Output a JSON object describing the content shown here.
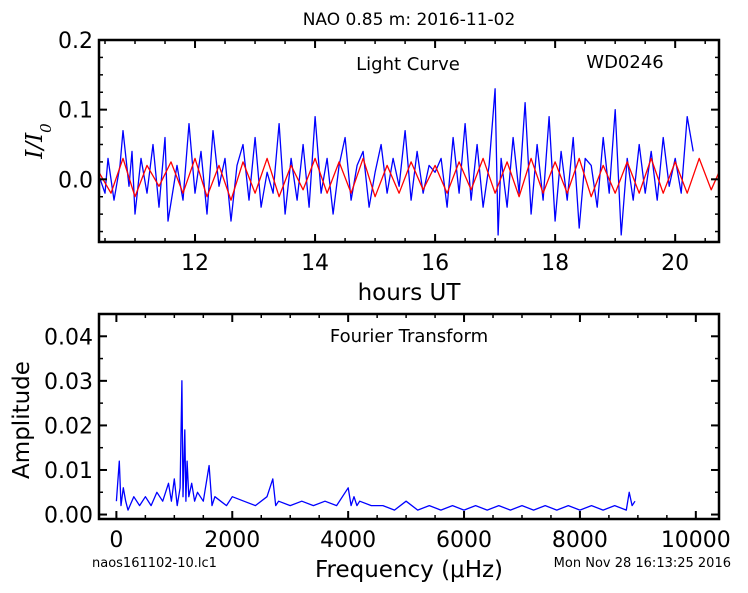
{
  "figure": {
    "title": "NAO 0.85 m:  2016-11-02",
    "footer_left": "naos161102-10.lc1",
    "footer_right": "Mon Nov 28 16:13:25 2016"
  },
  "chart_data": [
    {
      "type": "line",
      "annotation_left": "Light Curve",
      "annotation_right": "WD0246",
      "xlabel": "hours UT",
      "ylabel": "I/I0",
      "xlim": [
        10.4,
        20.73
      ],
      "ylim": [
        -0.09,
        0.2
      ],
      "xticks": [
        12,
        14,
        16,
        18,
        20
      ],
      "xtick_labels": [
        "12",
        "14",
        "16",
        "18",
        "20"
      ],
      "yticks": [
        0.0,
        0.1,
        0.2
      ],
      "ytick_labels": [
        "0.0",
        "0.1",
        "0.2"
      ],
      "grid": false,
      "series": [
        {
          "color": "#0000ff",
          "x": [
            10.4,
            10.5,
            10.55,
            10.65,
            10.75,
            10.8,
            10.9,
            10.95,
            11.0,
            11.1,
            11.2,
            11.3,
            11.4,
            11.5,
            11.55,
            11.7,
            11.8,
            11.9,
            12.0,
            12.1,
            12.2,
            12.3,
            12.4,
            12.5,
            12.6,
            12.7,
            12.8,
            12.9,
            13.0,
            13.1,
            13.2,
            13.3,
            13.4,
            13.5,
            13.6,
            13.7,
            13.8,
            13.9,
            14.0,
            14.1,
            14.2,
            14.3,
            14.4,
            14.5,
            14.6,
            14.7,
            14.8,
            14.9,
            15.0,
            15.1,
            15.2,
            15.3,
            15.4,
            15.5,
            15.6,
            15.7,
            15.8,
            15.9,
            16.0,
            16.1,
            16.2,
            16.3,
            16.4,
            16.5,
            16.6,
            16.7,
            16.8,
            16.9,
            17.0,
            17.05,
            17.1,
            17.2,
            17.3,
            17.4,
            17.5,
            17.6,
            17.7,
            17.8,
            17.9,
            18.0,
            18.1,
            18.2,
            18.3,
            18.4,
            18.5,
            18.6,
            18.7,
            18.8,
            18.9,
            19.0,
            19.1,
            19.2,
            19.3,
            19.4,
            19.5,
            19.6,
            19.7,
            19.8,
            19.9,
            20.0,
            20.1,
            20.2,
            20.3
          ],
          "y": [
            0.005,
            -0.02,
            0.03,
            -0.03,
            0.02,
            0.07,
            -0.01,
            0.04,
            -0.05,
            0.03,
            -0.02,
            0.05,
            -0.04,
            0.06,
            -0.06,
            0.02,
            -0.03,
            0.08,
            -0.02,
            0.04,
            -0.05,
            0.07,
            -0.01,
            0.03,
            -0.06,
            0.02,
            0.05,
            -0.03,
            0.06,
            -0.04,
            0.01,
            -0.02,
            0.08,
            -0.05,
            0.03,
            -0.03,
            0.05,
            -0.04,
            0.09,
            -0.02,
            0.03,
            -0.05,
            0.02,
            0.06,
            -0.03,
            0.02,
            0.04,
            -0.04,
            0.01,
            0.05,
            -0.02,
            0.03,
            -0.01,
            0.07,
            -0.03,
            0.04,
            -0.02,
            0.02,
            0.01,
            0.03,
            -0.04,
            0.06,
            -0.02,
            0.08,
            -0.03,
            0.05,
            -0.04,
            0.02,
            0.13,
            -0.08,
            0.03,
            -0.04,
            0.06,
            -0.02,
            0.11,
            -0.05,
            0.05,
            -0.03,
            0.09,
            -0.06,
            0.04,
            -0.03,
            0.06,
            -0.07,
            0.03,
            0.02,
            -0.04,
            0.06,
            -0.02,
            0.1,
            -0.08,
            0.03,
            -0.03,
            0.05,
            -0.02,
            0.04,
            -0.03,
            0.06,
            -0.01,
            0.03,
            -0.02,
            0.09,
            0.04
          ]
        },
        {
          "color": "#ff0000",
          "x": [
            10.4,
            10.6,
            10.8,
            11.0,
            11.2,
            11.4,
            11.6,
            11.8,
            12.0,
            12.2,
            12.4,
            12.6,
            12.8,
            13.0,
            13.2,
            13.4,
            13.6,
            13.8,
            14.0,
            14.2,
            14.4,
            14.6,
            14.8,
            15.0,
            15.2,
            15.4,
            15.6,
            15.8,
            16.0,
            16.2,
            16.4,
            16.6,
            16.8,
            17.0,
            17.2,
            17.4,
            17.6,
            17.8,
            18.0,
            18.2,
            18.4,
            18.6,
            18.8,
            19.0,
            19.2,
            19.4,
            19.6,
            19.8,
            20.0,
            20.2,
            20.4,
            20.6,
            20.73
          ],
          "y": [
            0.01,
            -0.02,
            0.03,
            -0.025,
            0.02,
            -0.01,
            0.025,
            -0.02,
            0.03,
            -0.025,
            0.02,
            -0.03,
            0.025,
            -0.02,
            0.03,
            -0.025,
            0.02,
            -0.015,
            0.03,
            -0.02,
            0.025,
            -0.02,
            0.03,
            -0.025,
            0.02,
            -0.02,
            0.025,
            -0.015,
            0.02,
            -0.02,
            0.025,
            -0.015,
            0.03,
            -0.02,
            0.025,
            -0.025,
            0.03,
            -0.02,
            0.025,
            -0.02,
            0.03,
            -0.025,
            0.02,
            -0.02,
            0.025,
            -0.02,
            0.03,
            -0.02,
            0.025,
            -0.02,
            0.03,
            -0.015,
            0.01
          ]
        }
      ]
    },
    {
      "type": "line",
      "annotation": "Fourier Transform",
      "xlabel": "Frequency (μHz)",
      "ylabel": "Amplitude",
      "xlim": [
        -300,
        10400
      ],
      "ylim": [
        -0.001,
        0.045
      ],
      "xticks": [
        0,
        2000,
        4000,
        6000,
        8000,
        10000
      ],
      "xtick_labels": [
        "0",
        "2000",
        "4000",
        "6000",
        "8000",
        "10000"
      ],
      "yticks": [
        0.0,
        0.01,
        0.02,
        0.03,
        0.04
      ],
      "ytick_labels": [
        "0.00",
        "0.01",
        "0.02",
        "0.03",
        "0.04"
      ],
      "grid": false,
      "series": [
        {
          "color": "#0000ff",
          "x": [
            0,
            50,
            80,
            120,
            160,
            200,
            300,
            400,
            500,
            600,
            700,
            800,
            900,
            950,
            1000,
            1050,
            1100,
            1130,
            1150,
            1180,
            1200,
            1220,
            1250,
            1300,
            1350,
            1400,
            1500,
            1600,
            1650,
            1700,
            1800,
            1900,
            2000,
            2200,
            2400,
            2600,
            2700,
            2750,
            2800,
            3000,
            3200,
            3400,
            3600,
            3800,
            4000,
            4050,
            4100,
            4150,
            4200,
            4400,
            4600,
            4800,
            5000,
            5200,
            5400,
            5600,
            5800,
            6000,
            6200,
            6400,
            6600,
            6800,
            7000,
            7200,
            7400,
            7600,
            7800,
            8000,
            8200,
            8400,
            8600,
            8800,
            8850,
            8900,
            8950
          ],
          "y": [
            0.003,
            0.012,
            0.002,
            0.006,
            0.003,
            0.001,
            0.004,
            0.002,
            0.004,
            0.002,
            0.005,
            0.003,
            0.007,
            0.003,
            0.008,
            0.002,
            0.006,
            0.03,
            0.004,
            0.019,
            0.003,
            0.012,
            0.004,
            0.007,
            0.003,
            0.005,
            0.003,
            0.011,
            0.002,
            0.004,
            0.003,
            0.002,
            0.004,
            0.003,
            0.002,
            0.004,
            0.008,
            0.002,
            0.003,
            0.002,
            0.003,
            0.002,
            0.003,
            0.002,
            0.006,
            0.002,
            0.004,
            0.002,
            0.003,
            0.002,
            0.002,
            0.001,
            0.003,
            0.001,
            0.002,
            0.001,
            0.002,
            0.001,
            0.002,
            0.001,
            0.002,
            0.001,
            0.002,
            0.001,
            0.002,
            0.001,
            0.002,
            0.001,
            0.002,
            0.001,
            0.002,
            0.001,
            0.005,
            0.002,
            0.003
          ]
        }
      ]
    }
  ]
}
